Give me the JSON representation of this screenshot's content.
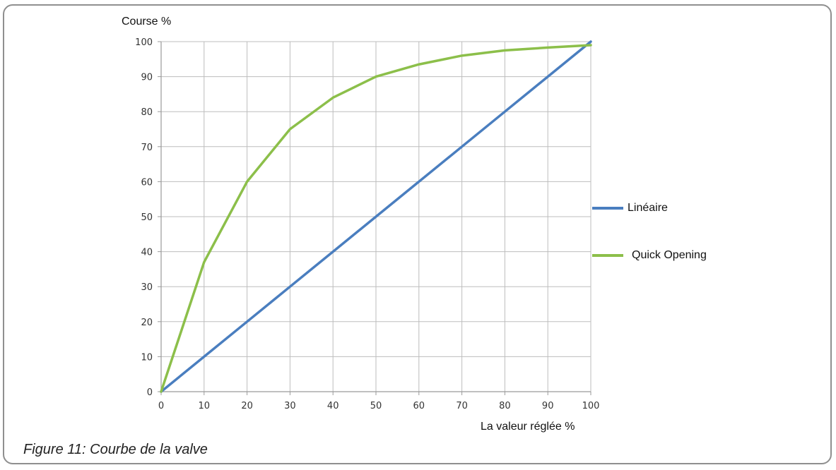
{
  "chart_data": {
    "type": "line",
    "ylabel": "Course %",
    "xlabel": "La valeur réglée %",
    "xlim": [
      0,
      100
    ],
    "ylim": [
      0,
      100
    ],
    "x_ticks": [
      "0",
      "10",
      "20",
      "30",
      "40",
      "50",
      "60",
      "70",
      "80",
      "90",
      "100"
    ],
    "y_ticks": [
      "0",
      "10",
      "20",
      "30",
      "40",
      "50",
      "60",
      "70",
      "80",
      "90",
      "100"
    ],
    "grid": true,
    "legend_position": "right",
    "series": [
      {
        "name": "Linéaire",
        "color": "#4a7ebf",
        "x": [
          0,
          10,
          20,
          30,
          40,
          50,
          60,
          70,
          80,
          90,
          100
        ],
        "y": [
          0,
          10,
          20,
          30,
          40,
          50,
          60,
          70,
          80,
          90,
          100
        ]
      },
      {
        "name": "Quick Opening",
        "color": "#8cbf4a",
        "x": [
          0,
          10,
          20,
          30,
          40,
          50,
          60,
          70,
          80,
          90,
          100
        ],
        "y": [
          0,
          37,
          60,
          75,
          84,
          90,
          93.5,
          96,
          97.5,
          98.3,
          99
        ]
      }
    ]
  },
  "caption": "Figure 11: Courbe de la valve"
}
